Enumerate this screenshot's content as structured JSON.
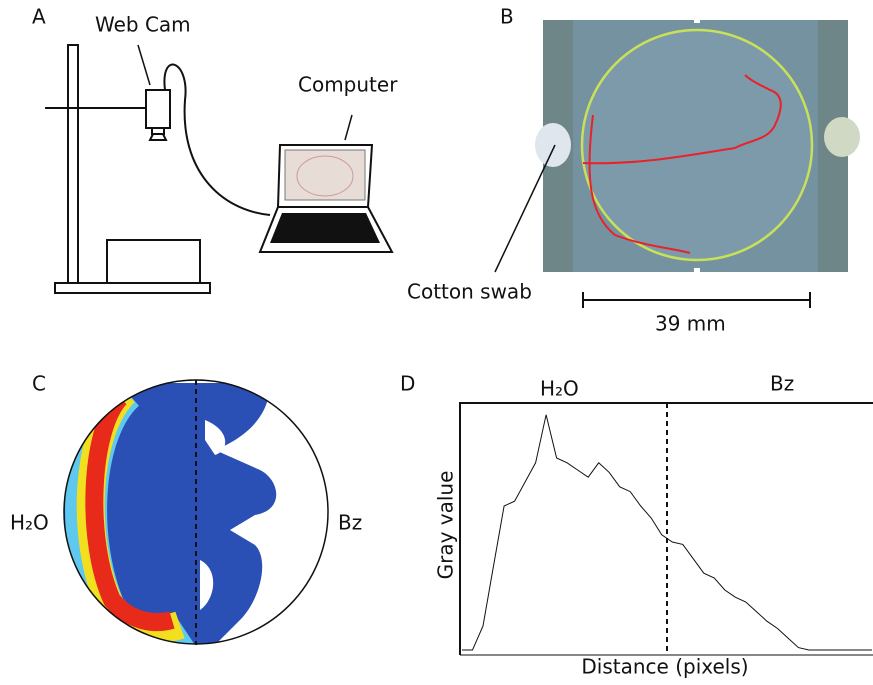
{
  "panels": {
    "a": {
      "label": "A",
      "webcam": "Web Cam",
      "computer": "Computer"
    },
    "b": {
      "label": "B",
      "cotton": "Cotton swab",
      "scale": "39 mm"
    },
    "c": {
      "label": "C",
      "left": "H₂O",
      "right": "Bz"
    },
    "d": {
      "label": "D",
      "left": "H₂O",
      "right": "Bz",
      "ylabel": "Gray value",
      "xlabel": "Distance (pixels)",
      "profile": [
        0,
        0,
        10,
        35,
        60,
        62,
        70,
        78,
        98,
        80,
        78,
        75,
        72,
        78,
        74,
        68,
        66,
        60,
        55,
        48,
        45,
        44,
        38,
        32,
        30,
        25,
        22,
        20,
        16,
        12,
        9,
        5,
        1,
        0,
        0,
        0,
        0,
        0,
        0,
        0
      ]
    }
  }
}
